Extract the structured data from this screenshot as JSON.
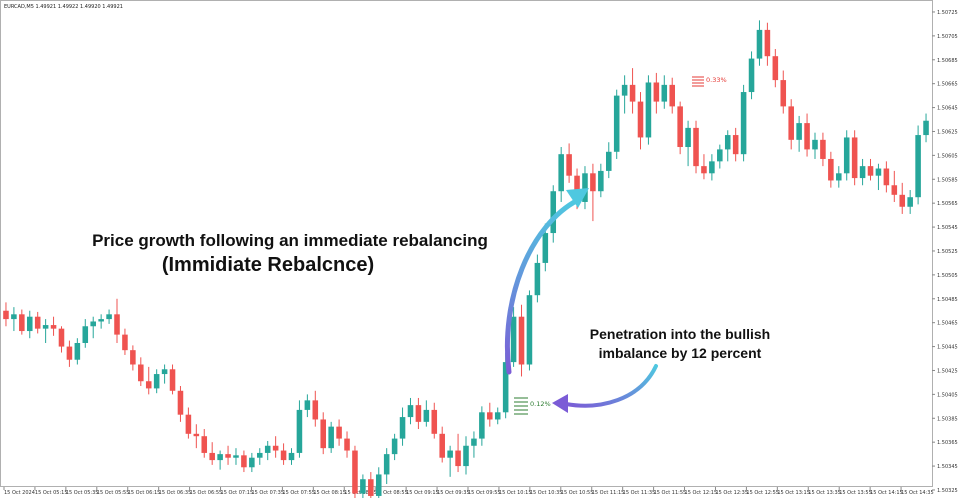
{
  "symbol_line": "EURCAD,M5  1.49921 1.49922 1.49920 1.49921",
  "annotations": {
    "main_line1": "Price growth following an immediate rebalancing",
    "main_line2": "(Immidiate Rebalcnce)",
    "side_line1": "Penetration into the bullish",
    "side_line2": "imbalance by 12 percent",
    "pct_high": "0.33%",
    "pct_low": "0.12%"
  },
  "colors": {
    "bull": "#26a69a",
    "bear": "#ef5350",
    "pct_high": "#e53935",
    "pct_low": "#2e7d32",
    "arrow_start": "#7b5cd6",
    "arrow_end": "#4fc8e0"
  },
  "chart_data": {
    "type": "candlestick",
    "instrument": "EURCAD",
    "timeframe": "M5",
    "ylim": [
      1.5033,
      1.5073
    ],
    "y_ticks": [
      "1.50725",
      "1.50705",
      "1.50685",
      "1.50665",
      "1.50645",
      "1.50625",
      "1.50605",
      "1.50585",
      "1.50565",
      "1.50545",
      "1.50525",
      "1.50505",
      "1.50485",
      "1.50465",
      "1.50445",
      "1.50425",
      "1.50405",
      "1.50385",
      "1.50365",
      "1.50345",
      "1.50325"
    ],
    "x_ticks": [
      "15 Oct 2024",
      "15 Oct 05:15",
      "15 Oct 05:35",
      "15 Oct 05:55",
      "15 Oct 06:15",
      "15 Oct 06:35",
      "15 Oct 06:55",
      "15 Oct 07:15",
      "15 Oct 07:35",
      "15 Oct 07:55",
      "15 Oct 08:15",
      "15 Oct 08:35",
      "15 Oct 08:55",
      "15 Oct 09:15",
      "15 Oct 09:35",
      "15 Oct 09:55",
      "15 Oct 10:15",
      "15 Oct 10:35",
      "15 Oct 10:55",
      "15 Oct 11:15",
      "15 Oct 11:35",
      "15 Oct 11:55",
      "15 Oct 12:15",
      "15 Oct 12:35",
      "15 Oct 12:55",
      "15 Oct 13:15",
      "15 Oct 13:35",
      "15 Oct 13:55",
      "15 Oct 14:15",
      "15 Oct 14:35"
    ],
    "grid": false,
    "candles": [
      {
        "o": 1.50475,
        "h": 1.50482,
        "l": 1.50462,
        "c": 1.50468
      },
      {
        "o": 1.50468,
        "h": 1.50478,
        "l": 1.50458,
        "c": 1.50472
      },
      {
        "o": 1.50472,
        "h": 1.50476,
        "l": 1.50455,
        "c": 1.50458
      },
      {
        "o": 1.50458,
        "h": 1.50475,
        "l": 1.50452,
        "c": 1.5047
      },
      {
        "o": 1.5047,
        "h": 1.50474,
        "l": 1.50456,
        "c": 1.5046
      },
      {
        "o": 1.5046,
        "h": 1.50468,
        "l": 1.50448,
        "c": 1.50463
      },
      {
        "o": 1.50463,
        "h": 1.5047,
        "l": 1.50454,
        "c": 1.5046
      },
      {
        "o": 1.5046,
        "h": 1.50462,
        "l": 1.5044,
        "c": 1.50445
      },
      {
        "o": 1.50445,
        "h": 1.5045,
        "l": 1.50428,
        "c": 1.50434
      },
      {
        "o": 1.50434,
        "h": 1.50452,
        "l": 1.5043,
        "c": 1.50448
      },
      {
        "o": 1.50448,
        "h": 1.50468,
        "l": 1.50444,
        "c": 1.50462
      },
      {
        "o": 1.50462,
        "h": 1.5047,
        "l": 1.50452,
        "c": 1.50466
      },
      {
        "o": 1.50466,
        "h": 1.50472,
        "l": 1.5046,
        "c": 1.50468
      },
      {
        "o": 1.50468,
        "h": 1.50476,
        "l": 1.50464,
        "c": 1.50472
      },
      {
        "o": 1.50472,
        "h": 1.50485,
        "l": 1.50448,
        "c": 1.50455
      },
      {
        "o": 1.50455,
        "h": 1.5046,
        "l": 1.50438,
        "c": 1.50442
      },
      {
        "o": 1.50442,
        "h": 1.50446,
        "l": 1.50425,
        "c": 1.5043
      },
      {
        "o": 1.5043,
        "h": 1.50436,
        "l": 1.50412,
        "c": 1.50416
      },
      {
        "o": 1.50416,
        "h": 1.50428,
        "l": 1.50405,
        "c": 1.5041
      },
      {
        "o": 1.5041,
        "h": 1.50426,
        "l": 1.50406,
        "c": 1.50422
      },
      {
        "o": 1.50422,
        "h": 1.5043,
        "l": 1.50414,
        "c": 1.50426
      },
      {
        "o": 1.50426,
        "h": 1.5043,
        "l": 1.50405,
        "c": 1.50408
      },
      {
        "o": 1.50408,
        "h": 1.50412,
        "l": 1.50382,
        "c": 1.50388
      },
      {
        "o": 1.50388,
        "h": 1.50394,
        "l": 1.50368,
        "c": 1.50372
      },
      {
        "o": 1.50372,
        "h": 1.5038,
        "l": 1.5036,
        "c": 1.5037
      },
      {
        "o": 1.5037,
        "h": 1.50376,
        "l": 1.50352,
        "c": 1.50356
      },
      {
        "o": 1.50356,
        "h": 1.50365,
        "l": 1.50346,
        "c": 1.5035
      },
      {
        "o": 1.5035,
        "h": 1.50358,
        "l": 1.50342,
        "c": 1.50355
      },
      {
        "o": 1.50355,
        "h": 1.50362,
        "l": 1.50346,
        "c": 1.50352
      },
      {
        "o": 1.50352,
        "h": 1.5036,
        "l": 1.50346,
        "c": 1.50354
      },
      {
        "o": 1.50354,
        "h": 1.50358,
        "l": 1.5034,
        "c": 1.50344
      },
      {
        "o": 1.50344,
        "h": 1.50356,
        "l": 1.5034,
        "c": 1.50352
      },
      {
        "o": 1.50352,
        "h": 1.5036,
        "l": 1.50346,
        "c": 1.50356
      },
      {
        "o": 1.50356,
        "h": 1.50366,
        "l": 1.5035,
        "c": 1.50362
      },
      {
        "o": 1.50362,
        "h": 1.5037,
        "l": 1.50352,
        "c": 1.50358
      },
      {
        "o": 1.50358,
        "h": 1.50364,
        "l": 1.50346,
        "c": 1.5035
      },
      {
        "o": 1.5035,
        "h": 1.5036,
        "l": 1.50346,
        "c": 1.50356
      },
      {
        "o": 1.50356,
        "h": 1.504,
        "l": 1.50352,
        "c": 1.50392
      },
      {
        "o": 1.50392,
        "h": 1.50405,
        "l": 1.50386,
        "c": 1.504
      },
      {
        "o": 1.504,
        "h": 1.50408,
        "l": 1.50378,
        "c": 1.50384
      },
      {
        "o": 1.50384,
        "h": 1.5039,
        "l": 1.50355,
        "c": 1.5036
      },
      {
        "o": 1.5036,
        "h": 1.50382,
        "l": 1.50356,
        "c": 1.50378
      },
      {
        "o": 1.50378,
        "h": 1.50384,
        "l": 1.50362,
        "c": 1.50368
      },
      {
        "o": 1.50368,
        "h": 1.50374,
        "l": 1.50352,
        "c": 1.50358
      },
      {
        "o": 1.50358,
        "h": 1.50362,
        "l": 1.50318,
        "c": 1.50322
      },
      {
        "o": 1.50322,
        "h": 1.50338,
        "l": 1.5031,
        "c": 1.50334
      },
      {
        "o": 1.50334,
        "h": 1.5034,
        "l": 1.50314,
        "c": 1.5032
      },
      {
        "o": 1.5032,
        "h": 1.50344,
        "l": 1.50316,
        "c": 1.50338
      },
      {
        "o": 1.50338,
        "h": 1.5036,
        "l": 1.5033,
        "c": 1.50355
      },
      {
        "o": 1.50355,
        "h": 1.50372,
        "l": 1.5035,
        "c": 1.50368
      },
      {
        "o": 1.50368,
        "h": 1.50394,
        "l": 1.50362,
        "c": 1.50386
      },
      {
        "o": 1.50386,
        "h": 1.50402,
        "l": 1.5038,
        "c": 1.50396
      },
      {
        "o": 1.50396,
        "h": 1.50402,
        "l": 1.50376,
        "c": 1.50382
      },
      {
        "o": 1.50382,
        "h": 1.504,
        "l": 1.50378,
        "c": 1.50392
      },
      {
        "o": 1.50392,
        "h": 1.50398,
        "l": 1.50368,
        "c": 1.50372
      },
      {
        "o": 1.50372,
        "h": 1.50378,
        "l": 1.50348,
        "c": 1.50352
      },
      {
        "o": 1.50352,
        "h": 1.50362,
        "l": 1.50336,
        "c": 1.50358
      },
      {
        "o": 1.50358,
        "h": 1.50372,
        "l": 1.5034,
        "c": 1.50345
      },
      {
        "o": 1.50345,
        "h": 1.5037,
        "l": 1.50338,
        "c": 1.50362
      },
      {
        "o": 1.50362,
        "h": 1.50374,
        "l": 1.50352,
        "c": 1.50368
      },
      {
        "o": 1.50368,
        "h": 1.50395,
        "l": 1.50362,
        "c": 1.5039
      },
      {
        "o": 1.5039,
        "h": 1.50398,
        "l": 1.50378,
        "c": 1.50384
      },
      {
        "o": 1.50384,
        "h": 1.50394,
        "l": 1.5038,
        "c": 1.5039
      },
      {
        "o": 1.5039,
        "h": 1.5044,
        "l": 1.50385,
        "c": 1.50432
      },
      {
        "o": 1.50432,
        "h": 1.50478,
        "l": 1.50428,
        "c": 1.5047
      },
      {
        "o": 1.5047,
        "h": 1.5048,
        "l": 1.5042,
        "c": 1.5043
      },
      {
        "o": 1.5043,
        "h": 1.50492,
        "l": 1.50425,
        "c": 1.50488
      },
      {
        "o": 1.50488,
        "h": 1.50522,
        "l": 1.50482,
        "c": 1.50515
      },
      {
        "o": 1.50515,
        "h": 1.50548,
        "l": 1.50508,
        "c": 1.5054
      },
      {
        "o": 1.5054,
        "h": 1.5058,
        "l": 1.50532,
        "c": 1.50575
      },
      {
        "o": 1.50575,
        "h": 1.50612,
        "l": 1.50566,
        "c": 1.50606
      },
      {
        "o": 1.50606,
        "h": 1.50615,
        "l": 1.50582,
        "c": 1.50588
      },
      {
        "o": 1.50588,
        "h": 1.50594,
        "l": 1.5056,
        "c": 1.50566
      },
      {
        "o": 1.50566,
        "h": 1.50596,
        "l": 1.5056,
        "c": 1.5059
      },
      {
        "o": 1.5059,
        "h": 1.50598,
        "l": 1.5055,
        "c": 1.50575
      },
      {
        "o": 1.50575,
        "h": 1.50598,
        "l": 1.5057,
        "c": 1.50592
      },
      {
        "o": 1.50592,
        "h": 1.50616,
        "l": 1.50586,
        "c": 1.50608
      },
      {
        "o": 1.50608,
        "h": 1.5066,
        "l": 1.50602,
        "c": 1.50655
      },
      {
        "o": 1.50655,
        "h": 1.50672,
        "l": 1.5064,
        "c": 1.50664
      },
      {
        "o": 1.50664,
        "h": 1.50678,
        "l": 1.5064,
        "c": 1.5065
      },
      {
        "o": 1.5065,
        "h": 1.50658,
        "l": 1.5061,
        "c": 1.5062
      },
      {
        "o": 1.5062,
        "h": 1.50672,
        "l": 1.50614,
        "c": 1.50666
      },
      {
        "o": 1.50666,
        "h": 1.50674,
        "l": 1.5064,
        "c": 1.5065
      },
      {
        "o": 1.5065,
        "h": 1.50672,
        "l": 1.50644,
        "c": 1.50664
      },
      {
        "o": 1.50664,
        "h": 1.5067,
        "l": 1.5064,
        "c": 1.50646
      },
      {
        "o": 1.50646,
        "h": 1.5065,
        "l": 1.50606,
        "c": 1.50612
      },
      {
        "o": 1.50612,
        "h": 1.50634,
        "l": 1.50596,
        "c": 1.50628
      },
      {
        "o": 1.50628,
        "h": 1.50634,
        "l": 1.5059,
        "c": 1.50596
      },
      {
        "o": 1.50596,
        "h": 1.50606,
        "l": 1.50585,
        "c": 1.5059
      },
      {
        "o": 1.5059,
        "h": 1.50606,
        "l": 1.50584,
        "c": 1.506
      },
      {
        "o": 1.506,
        "h": 1.50614,
        "l": 1.50594,
        "c": 1.5061
      },
      {
        "o": 1.5061,
        "h": 1.50626,
        "l": 1.506,
        "c": 1.50622
      },
      {
        "o": 1.50622,
        "h": 1.50628,
        "l": 1.506,
        "c": 1.50606
      },
      {
        "o": 1.50606,
        "h": 1.50664,
        "l": 1.506,
        "c": 1.50658
      },
      {
        "o": 1.50658,
        "h": 1.50692,
        "l": 1.50652,
        "c": 1.50686
      },
      {
        "o": 1.50686,
        "h": 1.50718,
        "l": 1.5068,
        "c": 1.5071
      },
      {
        "o": 1.5071,
        "h": 1.50716,
        "l": 1.5068,
        "c": 1.50688
      },
      {
        "o": 1.50688,
        "h": 1.50694,
        "l": 1.50662,
        "c": 1.50668
      },
      {
        "o": 1.50668,
        "h": 1.50676,
        "l": 1.5064,
        "c": 1.50646
      },
      {
        "o": 1.50646,
        "h": 1.50652,
        "l": 1.5061,
        "c": 1.50618
      },
      {
        "o": 1.50618,
        "h": 1.50638,
        "l": 1.50608,
        "c": 1.50632
      },
      {
        "o": 1.50632,
        "h": 1.5064,
        "l": 1.50604,
        "c": 1.5061
      },
      {
        "o": 1.5061,
        "h": 1.50624,
        "l": 1.50602,
        "c": 1.50618
      },
      {
        "o": 1.50618,
        "h": 1.50624,
        "l": 1.50596,
        "c": 1.50602
      },
      {
        "o": 1.50602,
        "h": 1.50608,
        "l": 1.50578,
        "c": 1.50584
      },
      {
        "o": 1.50584,
        "h": 1.50596,
        "l": 1.50578,
        "c": 1.5059
      },
      {
        "o": 1.5059,
        "h": 1.50626,
        "l": 1.50584,
        "c": 1.5062
      },
      {
        "o": 1.5062,
        "h": 1.50626,
        "l": 1.5058,
        "c": 1.50586
      },
      {
        "o": 1.50586,
        "h": 1.50602,
        "l": 1.5058,
        "c": 1.50596
      },
      {
        "o": 1.50596,
        "h": 1.50602,
        "l": 1.50584,
        "c": 1.50588
      },
      {
        "o": 1.50588,
        "h": 1.50598,
        "l": 1.50576,
        "c": 1.50594
      },
      {
        "o": 1.50594,
        "h": 1.506,
        "l": 1.50574,
        "c": 1.5058
      },
      {
        "o": 1.5058,
        "h": 1.50592,
        "l": 1.50566,
        "c": 1.50572
      },
      {
        "o": 1.50572,
        "h": 1.50582,
        "l": 1.50556,
        "c": 1.50562
      },
      {
        "o": 1.50562,
        "h": 1.50576,
        "l": 1.50556,
        "c": 1.5057
      },
      {
        "o": 1.5057,
        "h": 1.5063,
        "l": 1.50564,
        "c": 1.50622
      },
      {
        "o": 1.50622,
        "h": 1.5064,
        "l": 1.50616,
        "c": 1.50634
      }
    ]
  }
}
